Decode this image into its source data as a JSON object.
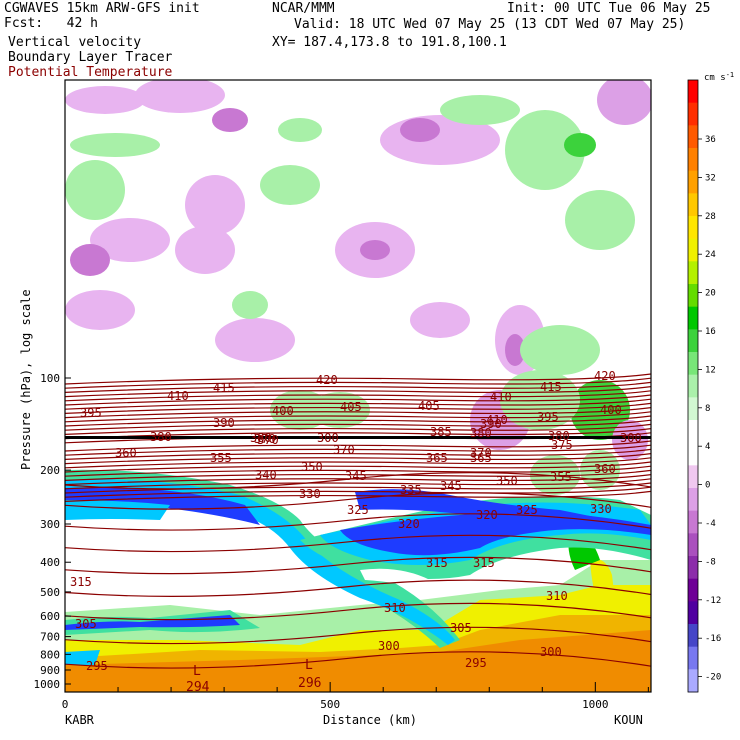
{
  "header": {
    "model": "CGWAVES 15km ARW-GFS init",
    "fcst_label": "Fcst:",
    "fcst_value": "42 h",
    "org": "NCAR/MMM",
    "init": "Init: 00 UTC Tue 06 May 25",
    "valid": "Valid: 18 UTC Wed 07 May 25 (13 CDT Wed 07 May 25)",
    "field1": "Vertical velocity",
    "field2": "Boundary Layer Tracer",
    "field3": "Potential Temperature",
    "xy": "XY= 187.4,173.8 to 191.8,100.1"
  },
  "colors": {
    "theta_contour": "#8b0000",
    "tracer_dark": "#1e3cff",
    "tracer_mid": "#00c8ff",
    "tracer_light": "#40e0a0",
    "orange": "#f08c00",
    "yellow": "#f0f000",
    "green_pos": "#a8f0a8",
    "violet_neg": "#e8b4f0"
  },
  "chart_data": {
    "type": "heatmap",
    "xlabel": "Distance (km)",
    "ylabel": "Pressure (hPa), log scale",
    "x_ticks": [
      "0",
      "500",
      "1000"
    ],
    "x_end_labels": {
      "left": "KABR",
      "right": "KOUN"
    },
    "y_ticks": [
      "100",
      "200",
      "300",
      "400",
      "500",
      "600",
      "700",
      "800",
      "900",
      "1000"
    ],
    "colorbar": {
      "unit": "cm s",
      "unit_exp": "-1",
      "labels": [
        "36",
        "32",
        "28",
        "24",
        "20",
        "16",
        "12",
        "8",
        "4",
        "0",
        "-4",
        "-8",
        "-12",
        "-16",
        "-20"
      ],
      "colors": [
        "#ff0000",
        "#ff2e00",
        "#ff5a00",
        "#ff8000",
        "#ffa000",
        "#ffc800",
        "#ffe600",
        "#f0f000",
        "#b4f000",
        "#64dc00",
        "#00c800",
        "#3cd23c",
        "#78e678",
        "#aaf0aa",
        "#d2f8d2",
        "#ffffff",
        "#ffffff",
        "#f0c8f0",
        "#dca0e6",
        "#c878d2",
        "#aa50be",
        "#8c2daa",
        "#6e0096",
        "#5000a0",
        "#4646c8",
        "#7878f0",
        "#aaaaff"
      ]
    },
    "theta_labels": [
      "415",
      "420",
      "410",
      "415",
      "420",
      "395",
      "410",
      "390",
      "400",
      "405",
      "405",
      "410",
      "390",
      "395",
      "400",
      "370",
      "380",
      "385",
      "380",
      "380",
      "380",
      "365",
      "360",
      "370",
      "365",
      "370",
      "375",
      "355",
      "340",
      "350",
      "360",
      "345",
      "355",
      "330",
      "335",
      "345",
      "350",
      "330",
      "325",
      "320",
      "320",
      "325",
      "315",
      "315",
      "315",
      "310",
      "310",
      "305",
      "300",
      "305",
      "300",
      "295",
      "295"
    ],
    "theta_labels_extra": [
      "370",
      "300",
      "300"
    ],
    "low_marks": [
      "L",
      "L"
    ],
    "low_values": [
      "294",
      "296"
    ]
  }
}
